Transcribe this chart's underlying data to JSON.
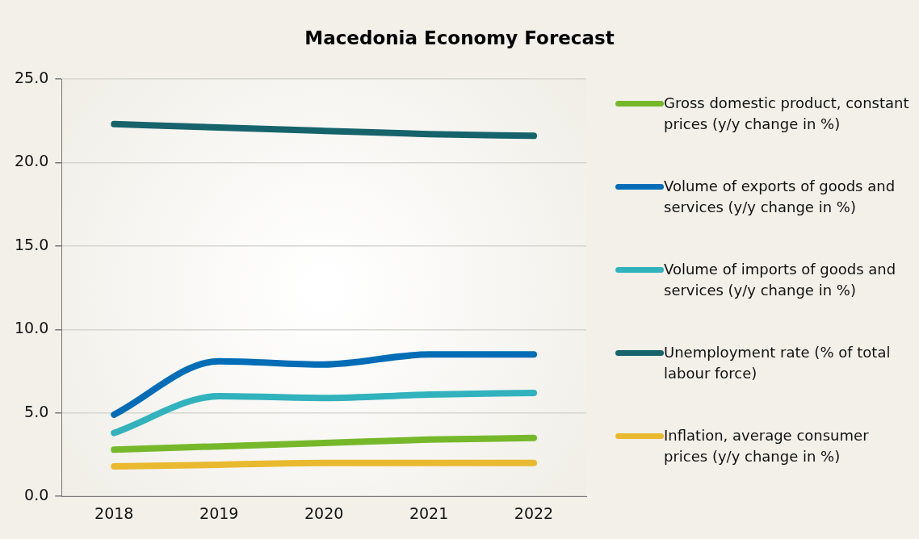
{
  "chart_data": {
    "type": "line",
    "title": "Macedonia Economy Forecast",
    "categories": [
      "2018",
      "2019",
      "2020",
      "2021",
      "2022"
    ],
    "series": [
      {
        "name": "Gross domestic product, constant prices (y/y change in %)",
        "color": "#76b82a",
        "values": [
          2.8,
          3.0,
          3.2,
          3.4,
          3.5
        ]
      },
      {
        "name": "Volume of exports of goods and services (y/y change in %)",
        "color": "#006db6",
        "values": [
          4.9,
          8.1,
          7.9,
          8.5,
          8.5
        ]
      },
      {
        "name": "Volume of imports of goods and services (y/y change in %)",
        "color": "#31b2bd",
        "values": [
          3.8,
          6.0,
          5.9,
          6.1,
          6.2
        ]
      },
      {
        "name": "Unemployment rate (% of total labour force)",
        "color": "#17636b",
        "values": [
          22.3,
          22.1,
          21.9,
          21.7,
          21.6
        ]
      },
      {
        "name": "Inflation, average consumer prices (y/y change in %)",
        "color": "#e9b92f",
        "values": [
          1.8,
          1.9,
          2.0,
          2.0,
          2.0
        ]
      }
    ],
    "ylim": [
      0,
      25
    ],
    "yticks": [
      {
        "value": 0,
        "label": "0.0"
      },
      {
        "value": 5,
        "label": "5.0"
      },
      {
        "value": 10,
        "label": "10.0"
      },
      {
        "value": 15,
        "label": "15.0"
      },
      {
        "value": 20,
        "label": "20.0"
      },
      {
        "value": 25,
        "label": "25.0"
      }
    ],
    "grid": "y",
    "legend": "right",
    "marker": "none",
    "line_style": "solid"
  }
}
